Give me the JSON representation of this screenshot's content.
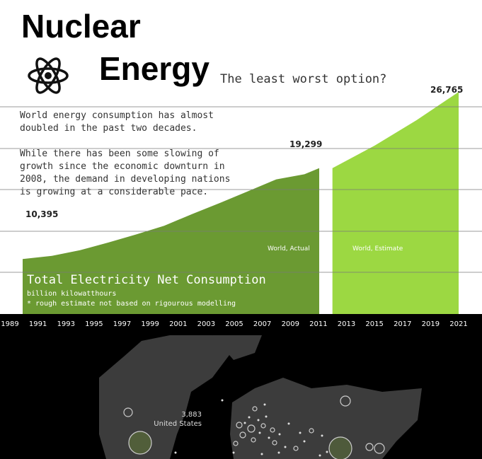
{
  "header": {
    "title_line1": "Nuclear",
    "title_line2": "Energy",
    "subtitle": "The least worst option?"
  },
  "intro": {
    "paragraph1": "World energy consumption has almost doubled in the past two decades.",
    "paragraph2": "While there has been some slowing of growth since the economic downturn in 2008, the demand in developing nations is growing at a considerable pace."
  },
  "icons": {
    "logo": "atom-icon"
  },
  "colors": {
    "actual": "#6b9a32",
    "estimate": "#9cd842",
    "axis_background": "#000000",
    "map_land": "#3c3c3c",
    "gridline": "#7a7a7a"
  },
  "panel": {
    "title": "Total Electricity Net Consumption",
    "unit": "billion kilowatthours",
    "note": "* rough estimate not based on rigourous modelling"
  },
  "chart_data": {
    "type": "area",
    "title": "Total Electricity Net Consumption",
    "ylabel": "billion kilowatthours",
    "xlim": [
      1989,
      2021
    ],
    "ylim": [
      0,
      26765
    ],
    "x_ticks": [
      1989,
      1991,
      1993,
      1995,
      1997,
      1999,
      2001,
      2003,
      2005,
      2007,
      2009,
      2011,
      2013,
      2015,
      2017,
      2019,
      2021
    ],
    "grid": true,
    "series": [
      {
        "name": "World, Actual",
        "x": [
          1990,
          1992,
          1994,
          1996,
          1998,
          2000,
          2002,
          2004,
          2006,
          2008,
          2010,
          2011
        ],
        "y": [
          10395,
          10700,
          11250,
          12000,
          12800,
          13650,
          14800,
          15900,
          17050,
          18200,
          18700,
          19299
        ]
      },
      {
        "name": "World, Estimate",
        "x": [
          2012,
          2015,
          2018,
          2021
        ],
        "y": [
          19299,
          21500,
          24000,
          26765
        ]
      }
    ],
    "data_labels": [
      {
        "x": 1990,
        "y": 10395,
        "text": "10,395"
      },
      {
        "x": 2011,
        "y": 19299,
        "text": "19,299"
      },
      {
        "x": 2021,
        "y": 26765,
        "text": "26,765"
      }
    ]
  },
  "map": {
    "callout_value": "3,883",
    "callout_country": "United States"
  }
}
